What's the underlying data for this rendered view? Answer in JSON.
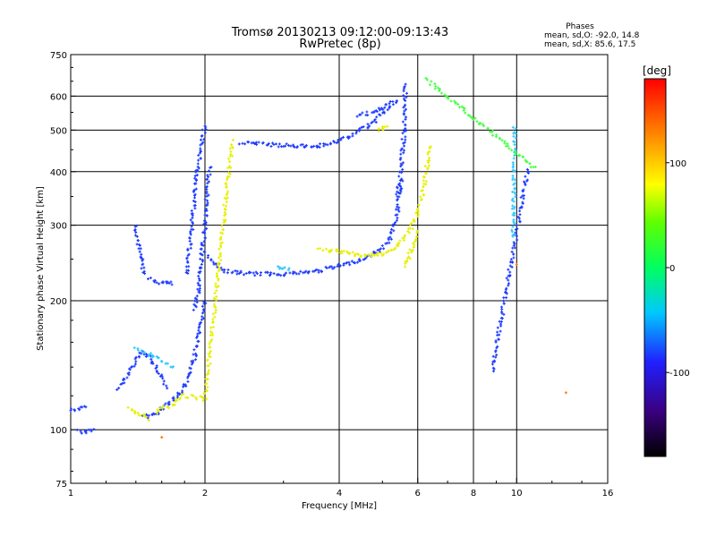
{
  "header": {
    "title_line1": "Tromsø 20130213 09:12:00-09:13:43",
    "title_line2": "RwPretec (8p)"
  },
  "stats": {
    "heading": "Phases",
    "line_o": "mean, sd,O: -92.0, 14.8",
    "line_x": "mean, sd,X:  85.6, 17.5"
  },
  "colorbar": {
    "unit": "[deg]",
    "tick_labels": [
      "100",
      "0",
      "-100"
    ],
    "tick_values": [
      100,
      0,
      -100
    ],
    "range": [
      -180,
      180
    ]
  },
  "chart_data": {
    "type": "scatter",
    "xlabel": "Frequency [MHz]",
    "ylabel": "Stationary phase Virtual Height [km]",
    "xscale": "log",
    "yscale": "log",
    "xlim": [
      1,
      16
    ],
    "ylim": [
      75,
      750
    ],
    "xticks": [
      1,
      2,
      4,
      6,
      8,
      10,
      16
    ],
    "xtick_labels": [
      "1",
      "2",
      "4",
      "6",
      "8",
      "10",
      "16"
    ],
    "yticks": [
      75,
      100,
      200,
      300,
      400,
      500,
      600,
      750
    ],
    "ytick_labels": [
      "75",
      "100",
      "200",
      "300",
      "400",
      "500",
      "600",
      "750"
    ],
    "grid": true,
    "grid_x": [
      2,
      4,
      6,
      8,
      10
    ],
    "grid_y": [
      100,
      200,
      300,
      400,
      500,
      600
    ],
    "series": [
      {
        "color": "#1e3cff",
        "segments": [
          {
            "x": [
              1.0,
              1.05,
              1.08
            ],
            "y": [
              111,
              112,
              113
            ]
          },
          {
            "x": [
              1.04,
              1.08,
              1.13
            ],
            "y": [
              99,
              99,
              100
            ]
          },
          {
            "x": [
              1.28,
              1.32,
              1.36,
              1.4,
              1.45,
              1.5,
              1.55,
              1.6,
              1.65
            ],
            "y": [
              125,
              130,
              138,
              146,
              152,
              148,
              140,
              132,
              126
            ]
          },
          {
            "x": [
              1.4,
              1.42,
              1.44,
              1.46
            ],
            "y": [
              300,
              270,
              250,
              230
            ]
          },
          {
            "x": [
              1.5,
              1.55,
              1.6,
              1.65,
              1.7
            ],
            "y": [
              225,
              222,
              220,
              220,
              219
            ]
          },
          {
            "x": [
              1.45,
              1.5,
              1.55,
              1.6,
              1.65,
              1.7,
              1.75,
              1.8,
              1.85,
              1.9,
              1.95,
              2.0
            ],
            "y": [
              108,
              107,
              109,
              112,
              115,
              118,
              121,
              126,
              135,
              150,
              170,
              200
            ]
          },
          {
            "x": [
              1.9,
              1.93,
              1.96,
              1.98,
              2.0,
              2.02,
              2.05
            ],
            "y": [
              190,
              210,
              240,
              270,
              300,
              350,
              410
            ]
          },
          {
            "x": [
              2.0,
              2.1,
              2.2,
              2.4,
              2.6,
              2.8,
              3.0,
              3.2,
              3.4,
              3.6,
              3.8,
              4.0,
              4.2,
              4.4,
              4.6,
              4.8,
              5.0,
              5.2,
              5.4,
              5.5
            ],
            "y": [
              260,
              245,
              235,
              232,
              231,
              231,
              231,
              232,
              233,
              235,
              238,
              241,
              244,
              248,
              252,
              258,
              265,
              280,
              320,
              380
            ]
          },
          {
            "x": [
              5.4,
              5.5,
              5.55,
              5.6,
              5.6,
              5.62,
              5.63
            ],
            "y": [
              350,
              400,
              450,
              500,
              550,
              600,
              640
            ]
          },
          {
            "x": [
              2.4,
              2.6,
              2.8,
              3.0,
              3.2,
              3.4,
              3.6,
              3.8,
              4.0,
              4.2,
              4.4,
              4.6,
              4.8,
              5.0,
              5.2,
              5.4
            ],
            "y": [
              468,
              465,
              462,
              460,
              459,
              458,
              460,
              465,
              472,
              480,
              495,
              510,
              525,
              545,
              565,
              590
            ]
          },
          {
            "x": [
              4.4,
              4.6,
              4.8,
              5.0,
              5.1,
              5.2
            ],
            "y": [
              540,
              545,
              550,
              560,
              570,
              580
            ]
          },
          {
            "x": [
              1.82,
              1.92,
              2.0
            ],
            "y": [
              230,
              400,
              512
            ]
          },
          {
            "x": [
              8.8,
              10.6
            ],
            "y": [
              137,
              406
            ]
          }
        ]
      },
      {
        "color": "#e6f000",
        "segments": [
          {
            "x": [
              3.6,
              3.8,
              4.0,
              4.2,
              4.4,
              4.6,
              4.8,
              5.0,
              5.2,
              5.4,
              5.6,
              5.8,
              6.0,
              6.2,
              6.4
            ],
            "y": [
              265,
              262,
              260,
              258,
              256,
              254,
              255,
              257,
              262,
              270,
              280,
              295,
              320,
              370,
              460
            ]
          },
          {
            "x": [
              5.6,
              5.7,
              5.8,
              5.9,
              6.0
            ],
            "y": [
              240,
              250,
              262,
              275,
              290
            ]
          },
          {
            "x": [
              1.55,
              1.6,
              1.7,
              1.8,
              2.0,
              2.3
            ],
            "y": [
              110,
              112,
              115,
              120,
              118,
              470
            ]
          },
          {
            "x": [
              1.35,
              1.4,
              1.45,
              1.5
            ],
            "y": [
              112,
              110,
              108,
              106
            ]
          },
          {
            "x": [
              4.9,
              5.0,
              5.1
            ],
            "y": [
              500,
              505,
              510
            ]
          }
        ]
      },
      {
        "color": "#30c8ff",
        "segments": [
          {
            "x": [
              9.8,
              9.85,
              9.9
            ],
            "y": [
              282,
              318,
              508
            ]
          },
          {
            "x": [
              1.4,
              1.5,
              1.6,
              1.7
            ],
            "y": [
              154,
              150,
              145,
              140
            ]
          },
          {
            "x": [
              2.9,
              3.0,
              3.1
            ],
            "y": [
              240,
              238,
              236
            ]
          }
        ]
      },
      {
        "color": "#ff7a00",
        "segments": [
          {
            "x": [
              10.0
            ],
            "y": [
              243
            ]
          },
          {
            "x": [
              12.9
            ],
            "y": [
              122
            ]
          },
          {
            "x": [
              1.6
            ],
            "y": [
              96
            ]
          }
        ]
      },
      {
        "color": "#44ff44",
        "segments": [
          {
            "x": [
              6.3,
              11.0
            ],
            "y": [
              655,
              407
            ]
          }
        ]
      }
    ]
  }
}
